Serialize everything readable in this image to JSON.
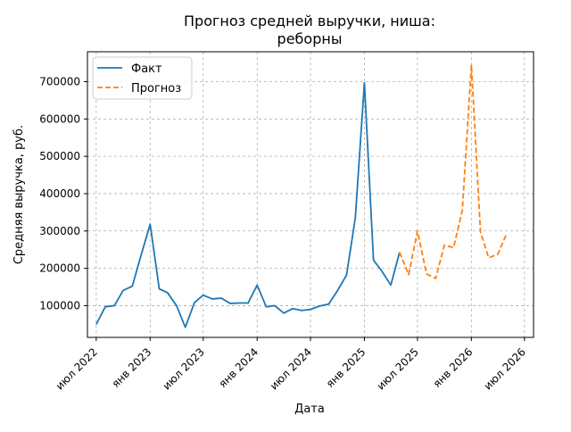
{
  "chart_data": {
    "type": "line",
    "title_lines": [
      "Прогноз средней выручки, ниша:",
      "реборны"
    ],
    "xlabel": "Дата",
    "ylabel": "Средняя выручка, руб.",
    "grid": true,
    "legend_position": "top-left",
    "x_axis": {
      "kind": "date",
      "range": [
        "2022-06-01",
        "2026-08-01"
      ],
      "ticks": [
        {
          "date": "2022-07-01",
          "label": "июл 2022"
        },
        {
          "date": "2023-01-01",
          "label": "янв 2023"
        },
        {
          "date": "2023-07-01",
          "label": "июл 2023"
        },
        {
          "date": "2024-01-01",
          "label": "янв 2024"
        },
        {
          "date": "2024-07-01",
          "label": "июл 2024"
        },
        {
          "date": "2025-01-01",
          "label": "янв 2025"
        },
        {
          "date": "2025-07-01",
          "label": "июл 2025"
        },
        {
          "date": "2026-01-01",
          "label": "янв 2026"
        },
        {
          "date": "2026-07-01",
          "label": "июл 2026"
        }
      ]
    },
    "y_axis": {
      "range": [
        15000,
        780000
      ],
      "ticks": [
        {
          "value": 100000,
          "label": "100000"
        },
        {
          "value": 200000,
          "label": "200000"
        },
        {
          "value": 300000,
          "label": "300000"
        },
        {
          "value": 400000,
          "label": "400000"
        },
        {
          "value": 500000,
          "label": "500000"
        },
        {
          "value": 600000,
          "label": "600000"
        },
        {
          "value": 700000,
          "label": "700000"
        }
      ]
    },
    "series": [
      {
        "name": "Факт",
        "style": "solid",
        "color": "#1f77b4",
        "points": [
          {
            "date": "2022-07-01",
            "value": 50000
          },
          {
            "date": "2022-08-01",
            "value": 97000
          },
          {
            "date": "2022-09-01",
            "value": 100000
          },
          {
            "date": "2022-10-01",
            "value": 141000
          },
          {
            "date": "2022-11-01",
            "value": 152000
          },
          {
            "date": "2022-12-01",
            "value": 235000
          },
          {
            "date": "2023-01-01",
            "value": 318000
          },
          {
            "date": "2023-02-01",
            "value": 145000
          },
          {
            "date": "2023-03-01",
            "value": 135000
          },
          {
            "date": "2023-04-01",
            "value": 100000
          },
          {
            "date": "2023-05-01",
            "value": 42000
          },
          {
            "date": "2023-06-01",
            "value": 108000
          },
          {
            "date": "2023-07-01",
            "value": 128000
          },
          {
            "date": "2023-08-01",
            "value": 118000
          },
          {
            "date": "2023-09-01",
            "value": 120000
          },
          {
            "date": "2023-10-01",
            "value": 106000
          },
          {
            "date": "2023-11-01",
            "value": 107000
          },
          {
            "date": "2023-12-01",
            "value": 107000
          },
          {
            "date": "2024-01-01",
            "value": 155000
          },
          {
            "date": "2024-02-01",
            "value": 97000
          },
          {
            "date": "2024-03-01",
            "value": 100000
          },
          {
            "date": "2024-04-01",
            "value": 80000
          },
          {
            "date": "2024-05-01",
            "value": 92000
          },
          {
            "date": "2024-06-01",
            "value": 87000
          },
          {
            "date": "2024-07-01",
            "value": 90000
          },
          {
            "date": "2024-08-01",
            "value": 99000
          },
          {
            "date": "2024-09-01",
            "value": 104000
          },
          {
            "date": "2024-10-01",
            "value": 140000
          },
          {
            "date": "2024-11-01",
            "value": 182000
          },
          {
            "date": "2024-12-01",
            "value": 335000
          },
          {
            "date": "2025-01-01",
            "value": 697000
          },
          {
            "date": "2025-02-01",
            "value": 222000
          },
          {
            "date": "2025-03-01",
            "value": 193000
          },
          {
            "date": "2025-04-01",
            "value": 155000
          },
          {
            "date": "2025-05-01",
            "value": 243000
          }
        ]
      },
      {
        "name": "Прогноз",
        "style": "dashed",
        "color": "#ff7f0e",
        "points": [
          {
            "date": "2025-05-01",
            "value": 243000
          },
          {
            "date": "2025-06-01",
            "value": 183000
          },
          {
            "date": "2025-07-01",
            "value": 300000
          },
          {
            "date": "2025-08-01",
            "value": 185000
          },
          {
            "date": "2025-09-01",
            "value": 173000
          },
          {
            "date": "2025-10-01",
            "value": 262000
          },
          {
            "date": "2025-11-01",
            "value": 255000
          },
          {
            "date": "2025-12-01",
            "value": 355000
          },
          {
            "date": "2026-01-01",
            "value": 745000
          },
          {
            "date": "2026-02-01",
            "value": 298000
          },
          {
            "date": "2026-03-01",
            "value": 228000
          },
          {
            "date": "2026-04-01",
            "value": 238000
          },
          {
            "date": "2026-05-01",
            "value": 292000
          }
        ]
      }
    ]
  }
}
